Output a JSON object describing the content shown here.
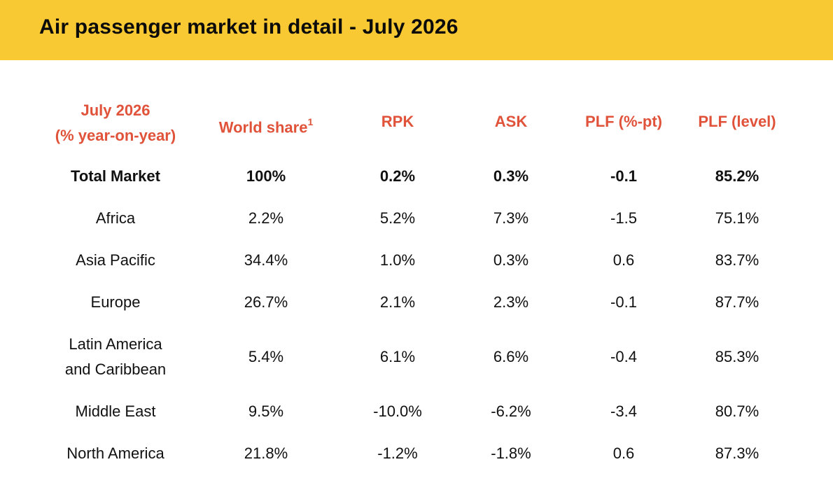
{
  "title": "Air passenger market in detail - July 2026",
  "table": {
    "header": {
      "period_line1": "July 2026",
      "period_line2": "(% year-on-year)",
      "world_share": "World share",
      "world_share_note": "1",
      "rpk": "RPK",
      "ask": "ASK",
      "plf_pt": "PLF (%-pt)",
      "plf_level": "PLF (level)"
    },
    "rows": [
      {
        "region": "Total Market",
        "world_share": "100%",
        "rpk": "0.2%",
        "ask": "0.3%",
        "plf_pt": "-0.1",
        "plf_level": "85.2%"
      },
      {
        "region": "Africa",
        "world_share": "2.2%",
        "rpk": "5.2%",
        "ask": "7.3%",
        "plf_pt": "-1.5",
        "plf_level": "75.1%"
      },
      {
        "region": "Asia Pacific",
        "world_share": "34.4%",
        "rpk": "1.0%",
        "ask": "0.3%",
        "plf_pt": "0.6",
        "plf_level": "83.7%"
      },
      {
        "region": "Europe",
        "world_share": "26.7%",
        "rpk": "2.1%",
        "ask": "2.3%",
        "plf_pt": "-0.1",
        "plf_level": "87.7%"
      },
      {
        "region_line1": "Latin America",
        "region_line2": "and Caribbean",
        "world_share": "5.4%",
        "rpk": "6.1%",
        "ask": "6.6%",
        "plf_pt": "-0.4",
        "plf_level": "85.3%"
      },
      {
        "region": "Middle East",
        "world_share": "9.5%",
        "rpk": "-10.0%",
        "ask": "-6.2%",
        "plf_pt": "-3.4",
        "plf_level": "80.7%"
      },
      {
        "region": "North America",
        "world_share": "21.8%",
        "rpk": "-1.2%",
        "ask": "-1.8%",
        "plf_pt": "0.6",
        "plf_level": "87.3%"
      }
    ]
  },
  "colors": {
    "banner": "#f8c932",
    "header_text": "#e0533a",
    "body_text": "#111111"
  }
}
